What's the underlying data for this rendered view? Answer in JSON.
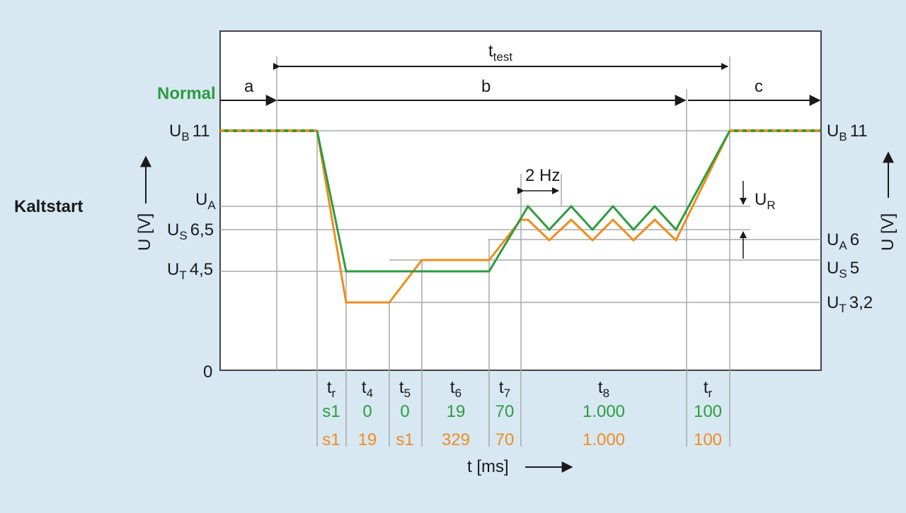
{
  "colors": {
    "background": "#d7e8f3",
    "plot_area": "#ffffff",
    "grid": "#a8a8a8",
    "axis": "#444444",
    "green": "#2e9b3e",
    "orange": "#f08c1e",
    "text": "#1a1a1a"
  },
  "diagram": {
    "mode_label": "Kaltstart",
    "normal_label": "Normal",
    "y_axis_label": "U [V]",
    "x_axis_label": "t [ms]",
    "zero_label": "0",
    "test_label": {
      "base": "t",
      "sub": "test"
    },
    "phase_labels": [
      "a",
      "b",
      "c"
    ],
    "frequency_label": "2 Hz",
    "ripple_label": {
      "base": "U",
      "sub": "R"
    },
    "left_levels": [
      {
        "base": "U",
        "sub": "B",
        "value": "11"
      },
      {
        "base": "U",
        "sub": "A",
        "value": ""
      },
      {
        "base": "U",
        "sub": "S",
        "value": "6,5"
      },
      {
        "base": "U",
        "sub": "T",
        "value": "4,5"
      }
    ],
    "right_levels": [
      {
        "base": "U",
        "sub": "B",
        "value": "11"
      },
      {
        "base": "U",
        "sub": "A",
        "value": "6"
      },
      {
        "base": "U",
        "sub": "S",
        "value": "5"
      },
      {
        "base": "U",
        "sub": "T",
        "value": "3,2"
      }
    ],
    "segments": [
      {
        "base": "t",
        "sub": "r",
        "green": "s1",
        "orange": "s1"
      },
      {
        "base": "t",
        "sub": "4",
        "green": "0",
        "orange": "19"
      },
      {
        "base": "t",
        "sub": "5",
        "green": "0",
        "orange": "s1"
      },
      {
        "base": "t",
        "sub": "6",
        "green": "19",
        "orange": "329"
      },
      {
        "base": "t",
        "sub": "7",
        "green": "70",
        "orange": "70"
      },
      {
        "base": "t",
        "sub": "8",
        "green": "1.000",
        "orange": "1.000"
      },
      {
        "base": "t",
        "sub": "r",
        "green": "100",
        "orange": "100"
      }
    ]
  }
}
